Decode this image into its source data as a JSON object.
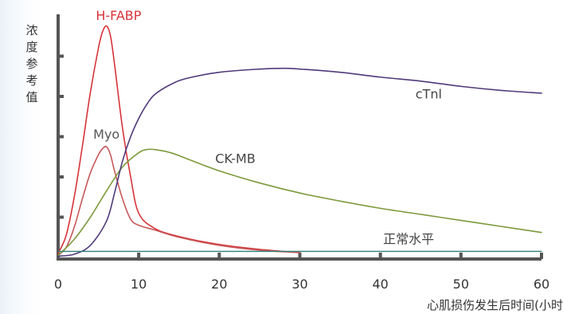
{
  "chart_data": {
    "type": "line",
    "title": "",
    "xlabel": "心肌损伤发生后时间(小时",
    "ylabel": "浓度参考值",
    "xlim": [
      0,
      60
    ],
    "ylim": [
      0,
      6
    ],
    "xticks": [
      0,
      10,
      20,
      30,
      40,
      50,
      60
    ],
    "xtick_labels": [
      "0",
      "10",
      "20",
      "30",
      "40",
      "50",
      "60"
    ],
    "yticks": [
      1,
      2,
      3,
      4,
      5
    ],
    "grid": false,
    "legend": "none",
    "series": [
      {
        "name": "H-FABP",
        "color": "#d6343a",
        "label_color": "#d6343a",
        "x": [
          0,
          1,
          2,
          3,
          4,
          5,
          5.5,
          6,
          6.5,
          7,
          8,
          9,
          10,
          12,
          15,
          20,
          25,
          30
        ],
        "y": [
          0.1,
          0.55,
          1.5,
          2.75,
          4.1,
          5.2,
          5.6,
          5.75,
          5.5,
          4.8,
          3.2,
          2.0,
          1.1,
          0.72,
          0.52,
          0.32,
          0.2,
          0.12
        ]
      },
      {
        "name": "Myo",
        "color": "#c75858",
        "label_color": "#555555",
        "x": [
          0,
          1,
          2,
          3,
          4,
          5,
          5.5,
          6,
          6.5,
          7,
          8,
          9,
          10,
          12,
          15,
          20,
          25,
          30
        ],
        "y": [
          0.05,
          0.25,
          0.75,
          1.45,
          2.1,
          2.55,
          2.7,
          2.75,
          2.55,
          2.15,
          1.45,
          0.95,
          0.8,
          0.68,
          0.5,
          0.3,
          0.18,
          0.12
        ]
      },
      {
        "name": "CK-MB",
        "color": "#7d9a3c",
        "label_color": "#444444",
        "x": [
          0,
          2,
          4,
          6,
          8,
          10,
          11,
          12,
          14,
          16,
          20,
          25,
          30,
          35,
          40,
          45,
          50,
          55,
          60
        ],
        "y": [
          0.05,
          0.45,
          1.0,
          1.65,
          2.25,
          2.6,
          2.68,
          2.68,
          2.6,
          2.45,
          2.15,
          1.85,
          1.6,
          1.4,
          1.22,
          1.07,
          0.92,
          0.77,
          0.62
        ]
      },
      {
        "name": "cTnl",
        "color": "#4f3a7a",
        "label_color": "#444444",
        "x": [
          0,
          2,
          4,
          6,
          7,
          8,
          9,
          10,
          11,
          12,
          14,
          16,
          20,
          25,
          28,
          30,
          35,
          40,
          45,
          50,
          55,
          60
        ],
        "y": [
          0.03,
          0.08,
          0.3,
          0.9,
          1.6,
          2.4,
          3.0,
          3.45,
          3.8,
          4.05,
          4.3,
          4.45,
          4.6,
          4.68,
          4.7,
          4.68,
          4.6,
          4.48,
          4.38,
          4.25,
          4.15,
          4.08
        ]
      },
      {
        "name": "正常水平",
        "color": "#2f7f7a",
        "label_color": "#444444",
        "x": [
          0,
          60
        ],
        "y": [
          0.15,
          0.15
        ]
      }
    ],
    "annotations": [
      {
        "text": "H-FABP",
        "series": "H-FABP",
        "x": 7.5,
        "y": 5.9
      },
      {
        "text": "Myo",
        "series": "Myo",
        "x": 6,
        "y": 2.95
      },
      {
        "text": "CK-MB",
        "series": "CK-MB",
        "x": 22,
        "y": 2.35
      },
      {
        "text": "cTnl",
        "series": "cTnl",
        "x": 46,
        "y": 3.95
      },
      {
        "text": "正常水平",
        "series": "正常水平",
        "x": 43.5,
        "y": 0.35
      }
    ]
  }
}
